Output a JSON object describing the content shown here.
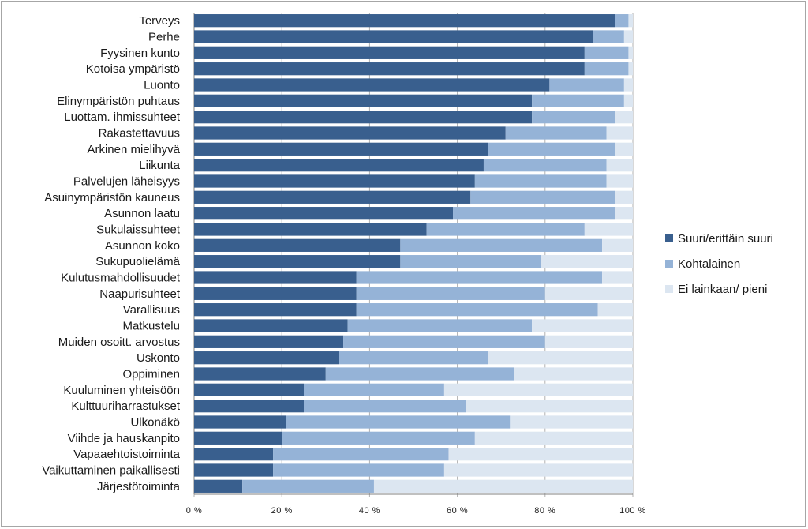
{
  "chart_data": {
    "type": "bar",
    "orientation": "horizontal",
    "stacked": "percent",
    "categories": [
      "Terveys",
      "Perhe",
      "Fyysinen kunto",
      "Kotoisa ympäristö",
      "Luonto",
      "Elinympäristön puhtaus",
      "Luottam. ihmissuhteet",
      "Rakastettavuus",
      "Arkinen mielihyvä",
      "Liikunta",
      "Palvelujen läheisyys",
      "Asuinympäristön kauneus",
      "Asunnon laatu",
      "Sukulaissuhteet",
      "Asunnon koko",
      "Sukupuolielämä",
      "Kulutusmahdollisuudet",
      "Naapurisuhteet",
      "Varallisuus",
      "Matkustelu",
      "Muiden osoitt. arvostus",
      "Uskonto",
      "Oppiminen",
      "Kuuluminen yhteisöön",
      "Kulttuuriharrastukset",
      "Ulkonäkö",
      "Viihde ja hauskanpito",
      "Vapaaehtoistoiminta",
      "Vaikuttaminen paikallisesti",
      "Järjestötoiminta"
    ],
    "series": [
      {
        "name": "Suuri/erittäin suuri",
        "color": "#395f8e",
        "values": [
          96,
          91,
          89,
          89,
          81,
          77,
          77,
          71,
          67,
          66,
          64,
          63,
          59,
          53,
          47,
          47,
          37,
          37,
          37,
          35,
          34,
          33,
          30,
          25,
          25,
          21,
          20,
          18,
          18,
          11
        ]
      },
      {
        "name": "Kohtalainen",
        "color": "#95b3d7",
        "values": [
          3,
          7,
          10,
          10,
          17,
          21,
          19,
          23,
          29,
          28,
          30,
          33,
          37,
          36,
          46,
          32,
          56,
          43,
          55,
          42,
          46,
          34,
          43,
          32,
          37,
          51,
          44,
          40,
          39,
          30
        ]
      },
      {
        "name": "Ei lainkaan/ pieni",
        "color": "#dce6f1",
        "values": [
          1,
          2,
          1,
          1,
          2,
          2,
          4,
          6,
          4,
          6,
          6,
          4,
          4,
          11,
          7,
          21,
          7,
          20,
          8,
          23,
          20,
          33,
          27,
          43,
          38,
          28,
          36,
          42,
          43,
          59
        ]
      }
    ],
    "x_ticks": [
      "0 %",
      "20 %",
      "40 %",
      "60 %",
      "80 %",
      "100 %"
    ],
    "xlim": [
      0,
      100
    ],
    "title": "",
    "xlabel": "",
    "ylabel": "",
    "grid": true,
    "legend_position": "right"
  }
}
